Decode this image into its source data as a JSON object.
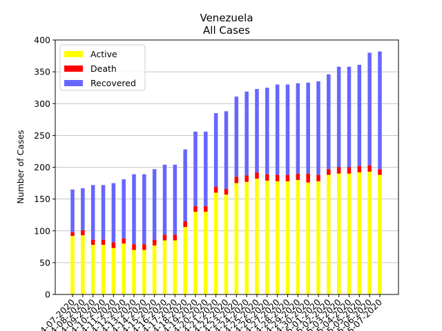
{
  "chart_data": {
    "type": "stacked_bar",
    "title": "Venezuela",
    "subtitle": "All Cases",
    "ylabel": "Number of Cases",
    "categories": [
      "04-07-2020",
      "04-08-2020",
      "04-09-2020",
      "04-10-2020",
      "04-11-2020",
      "04-12-2020",
      "04-13-2020",
      "04-14-2020",
      "04-15-2020",
      "04-16-2020",
      "04-17-2020",
      "04-18-2020",
      "04-19-2020",
      "04-20-2020",
      "04-21-2020",
      "04-22-2020",
      "04-23-2020",
      "04-24-2020",
      "04-25-2020",
      "04-26-2020",
      "04-27-2020",
      "04-28-2020",
      "04-29-2020",
      "04-30-2020",
      "05-01-2020",
      "05-02-2020",
      "05-03-2020",
      "05-04-2020",
      "05-05-2020",
      "05-06-2020",
      "05-07-2020"
    ],
    "series": [
      {
        "name": "Active",
        "color": "#ffff00",
        "values": [
          92,
          93,
          78,
          78,
          73,
          80,
          70,
          70,
          77,
          85,
          85,
          106,
          130,
          130,
          160,
          157,
          175,
          177,
          182,
          179,
          178,
          178,
          180,
          176,
          178,
          188,
          190,
          190,
          192,
          193,
          188
        ]
      },
      {
        "name": "Death",
        "color": "#ff0000",
        "values": [
          6,
          8,
          8,
          8,
          9,
          8,
          9,
          9,
          9,
          9,
          9,
          9,
          9,
          9,
          9,
          9,
          10,
          10,
          10,
          10,
          10,
          10,
          10,
          14,
          10,
          9,
          10,
          10,
          10,
          10,
          9
        ]
      },
      {
        "name": "Recovered",
        "color": "#6666ff",
        "values": [
          67,
          66,
          86,
          86,
          93,
          93,
          110,
          110,
          111,
          110,
          110,
          113,
          117,
          117,
          116,
          122,
          126,
          132,
          131,
          136,
          142,
          142,
          142,
          143,
          147,
          149,
          158,
          158,
          159,
          177,
          185
        ]
      }
    ],
    "ylim": [
      0,
      400
    ],
    "yticks": [
      0,
      50,
      100,
      150,
      200,
      250,
      300,
      350,
      400
    ],
    "grid": true,
    "legend": "upper left"
  }
}
